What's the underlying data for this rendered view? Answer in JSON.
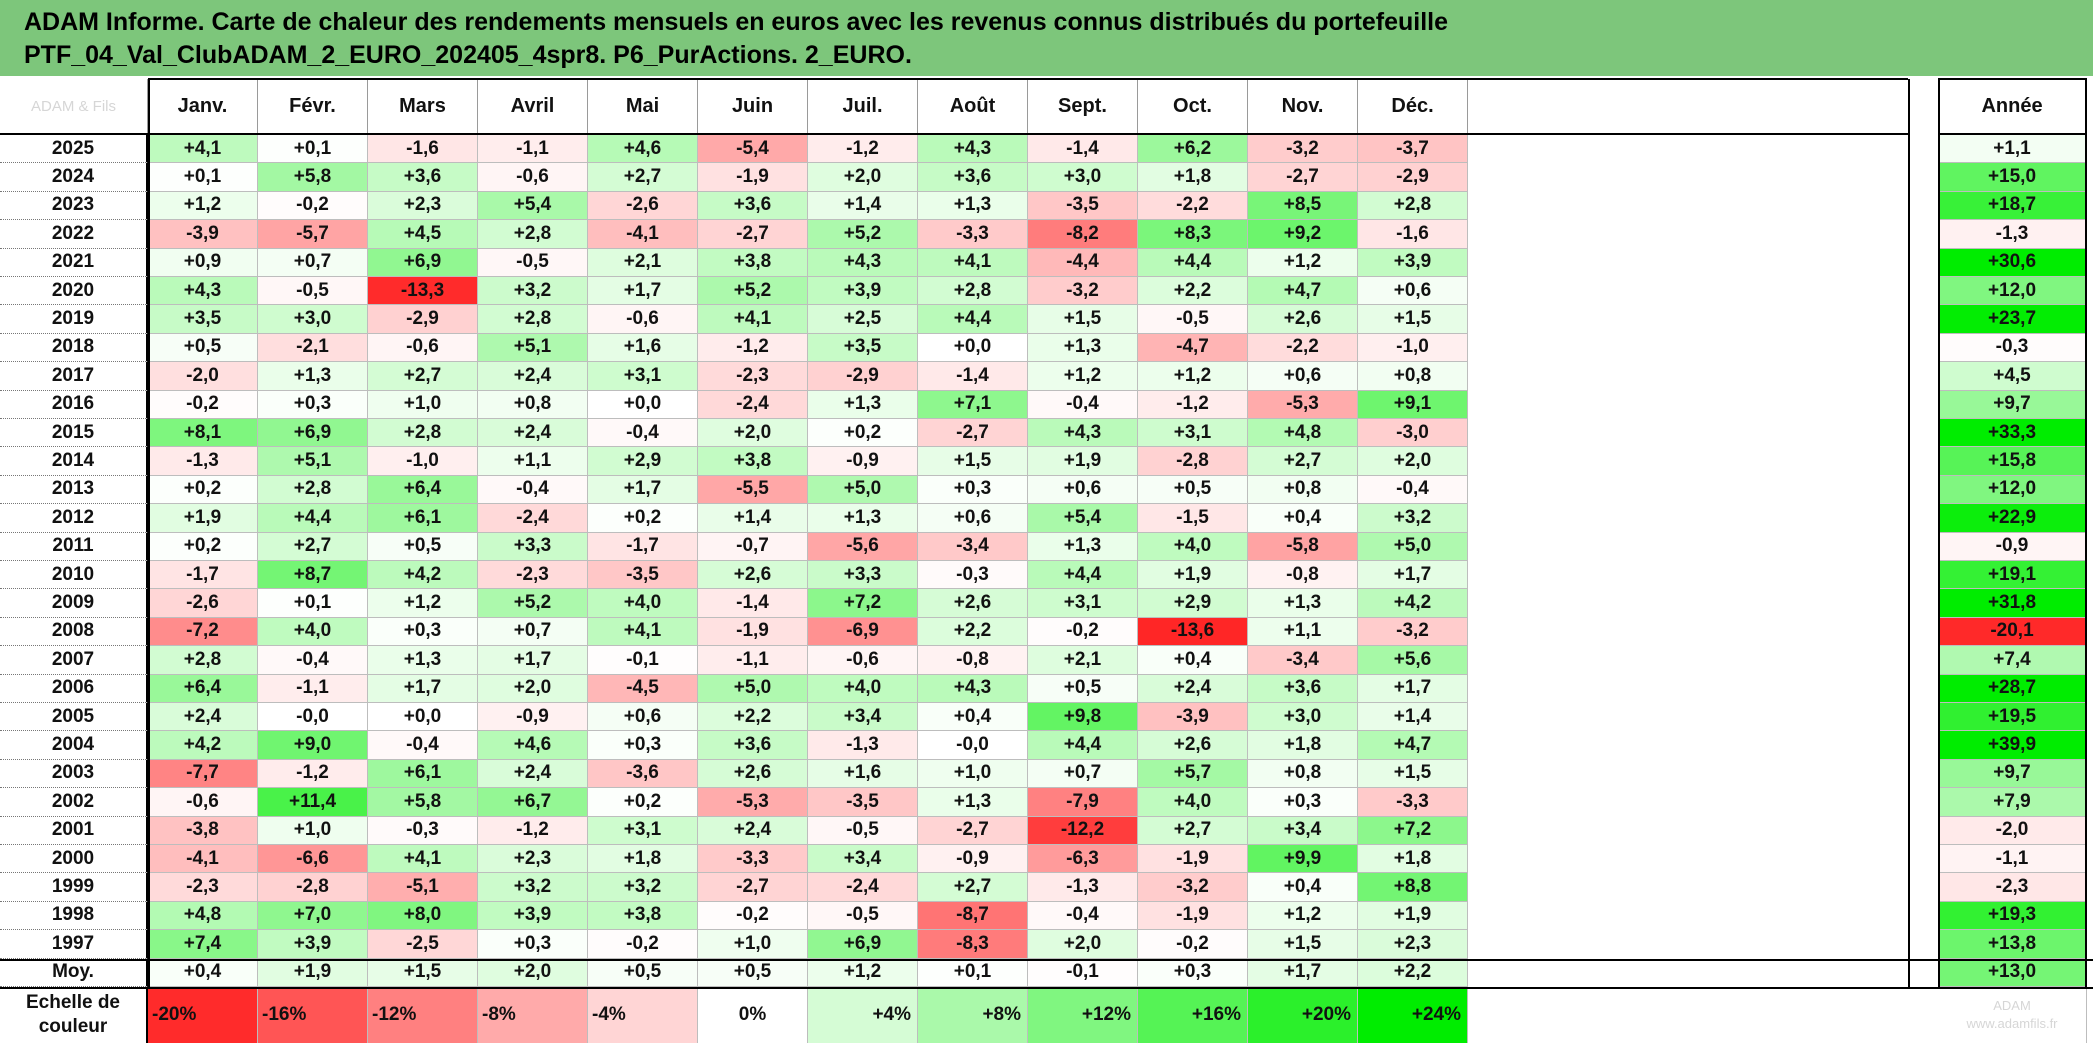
{
  "title": {
    "line1": "ADAM Informe. Carte de chaleur des rendements mensuels en euros avec les revenus connus distribués du portefeuille",
    "line2": "PTF_04_Val_ClubADAM_2_EURO_202405_4spr8. P6_PurActions. 2_EURO."
  },
  "corner_label": "ADAM & Fils",
  "colors": {
    "title_bg": "#7dc67b",
    "negative_max": "#ff0000",
    "positive_max": "#00ee00",
    "neutral": "#ffffff"
  },
  "chart_data": {
    "type": "heatmap",
    "months": [
      "Janv.",
      "Févr.",
      "Mars",
      "Avril",
      "Mai",
      "Juin",
      "Juil.",
      "Août",
      "Sept.",
      "Oct.",
      "Nov.",
      "Déc."
    ],
    "year_label": "Année",
    "avg_label": "Moy.",
    "rows": [
      {
        "year": "2025",
        "m": [
          "+4,1",
          "+0,1",
          "-1,6",
          "-1,1",
          "+4,6",
          "-5,4",
          "-1,2",
          "+4,3",
          "-1,4",
          "+6,2",
          "-3,2",
          "-3,7"
        ],
        "y": "+1,1"
      },
      {
        "year": "2024",
        "m": [
          "+0,1",
          "+5,8",
          "+3,6",
          "-0,6",
          "+2,7",
          "-1,9",
          "+2,0",
          "+3,6",
          "+3,0",
          "+1,8",
          "-2,7",
          "-2,9"
        ],
        "y": "+15,0"
      },
      {
        "year": "2023",
        "m": [
          "+1,2",
          "-0,2",
          "+2,3",
          "+5,4",
          "-2,6",
          "+3,6",
          "+1,4",
          "+1,3",
          "-3,5",
          "-2,2",
          "+8,5",
          "+2,8"
        ],
        "y": "+18,7"
      },
      {
        "year": "2022",
        "m": [
          "-3,9",
          "-5,7",
          "+4,5",
          "+2,8",
          "-4,1",
          "-2,7",
          "+5,2",
          "-3,3",
          "-8,2",
          "+8,3",
          "+9,2",
          "-1,6"
        ],
        "y": "-1,3"
      },
      {
        "year": "2021",
        "m": [
          "+0,9",
          "+0,7",
          "+6,9",
          "-0,5",
          "+2,1",
          "+3,8",
          "+4,3",
          "+4,1",
          "-4,4",
          "+4,4",
          "+1,2",
          "+3,9"
        ],
        "y": "+30,6"
      },
      {
        "year": "2020",
        "m": [
          "+4,3",
          "-0,5",
          "-13,3",
          "+3,2",
          "+1,7",
          "+5,2",
          "+3,9",
          "+2,8",
          "-3,2",
          "+2,2",
          "+4,7",
          "+0,6"
        ],
        "y": "+12,0"
      },
      {
        "year": "2019",
        "m": [
          "+3,5",
          "+3,0",
          "-2,9",
          "+2,8",
          "-0,6",
          "+4,1",
          "+2,5",
          "+4,4",
          "+1,5",
          "-0,5",
          "+2,6",
          "+1,5"
        ],
        "y": "+23,7"
      },
      {
        "year": "2018",
        "m": [
          "+0,5",
          "-2,1",
          "-0,6",
          "+5,1",
          "+1,6",
          "-1,2",
          "+3,5",
          "+0,0",
          "+1,3",
          "-4,7",
          "-2,2",
          "-1,0"
        ],
        "y": "-0,3"
      },
      {
        "year": "2017",
        "m": [
          "-2,0",
          "+1,3",
          "+2,7",
          "+2,4",
          "+3,1",
          "-2,3",
          "-2,9",
          "-1,4",
          "+1,2",
          "+1,2",
          "+0,6",
          "+0,8"
        ],
        "y": "+4,5"
      },
      {
        "year": "2016",
        "m": [
          "-0,2",
          "+0,3",
          "+1,0",
          "+0,8",
          "+0,0",
          "-2,4",
          "+1,3",
          "+7,1",
          "-0,4",
          "-1,2",
          "-5,3",
          "+9,1"
        ],
        "y": "+9,7"
      },
      {
        "year": "2015",
        "m": [
          "+8,1",
          "+6,9",
          "+2,8",
          "+2,4",
          "-0,4",
          "+2,0",
          "+0,2",
          "-2,7",
          "+4,3",
          "+3,1",
          "+4,8",
          "-3,0"
        ],
        "y": "+33,3"
      },
      {
        "year": "2014",
        "m": [
          "-1,3",
          "+5,1",
          "-1,0",
          "+1,1",
          "+2,9",
          "+3,8",
          "-0,9",
          "+1,5",
          "+1,9",
          "-2,8",
          "+2,7",
          "+2,0"
        ],
        "y": "+15,8"
      },
      {
        "year": "2013",
        "m": [
          "+0,2",
          "+2,8",
          "+6,4",
          "-0,4",
          "+1,7",
          "-5,5",
          "+5,0",
          "+0,3",
          "+0,6",
          "+0,5",
          "+0,8",
          "-0,4"
        ],
        "y": "+12,0"
      },
      {
        "year": "2012",
        "m": [
          "+1,9",
          "+4,4",
          "+6,1",
          "-2,4",
          "+0,2",
          "+1,4",
          "+1,3",
          "+0,6",
          "+5,4",
          "-1,5",
          "+0,4",
          "+3,2"
        ],
        "y": "+22,9"
      },
      {
        "year": "2011",
        "m": [
          "+0,2",
          "+2,7",
          "+0,5",
          "+3,3",
          "-1,7",
          "-0,7",
          "-5,6",
          "-3,4",
          "+1,3",
          "+4,0",
          "-5,8",
          "+5,0"
        ],
        "y": "-0,9"
      },
      {
        "year": "2010",
        "m": [
          "-1,7",
          "+8,7",
          "+4,2",
          "-2,3",
          "-3,5",
          "+2,6",
          "+3,3",
          "-0,3",
          "+4,4",
          "+1,9",
          "-0,8",
          "+1,7"
        ],
        "y": "+19,1"
      },
      {
        "year": "2009",
        "m": [
          "-2,6",
          "+0,1",
          "+1,2",
          "+5,2",
          "+4,0",
          "-1,4",
          "+7,2",
          "+2,6",
          "+3,1",
          "+2,9",
          "+1,3",
          "+4,2"
        ],
        "y": "+31,8"
      },
      {
        "year": "2008",
        "m": [
          "-7,2",
          "+4,0",
          "+0,3",
          "+0,7",
          "+4,1",
          "-1,9",
          "-6,9",
          "+2,2",
          "-0,2",
          "-13,6",
          "+1,1",
          "-3,2"
        ],
        "y": "-20,1"
      },
      {
        "year": "2007",
        "m": [
          "+2,8",
          "-0,4",
          "+1,3",
          "+1,7",
          "-0,1",
          "-1,1",
          "-0,6",
          "-0,8",
          "+2,1",
          "+0,4",
          "-3,4",
          "+5,6"
        ],
        "y": "+7,4"
      },
      {
        "year": "2006",
        "m": [
          "+6,4",
          "-1,1",
          "+1,7",
          "+2,0",
          "-4,5",
          "+5,0",
          "+4,0",
          "+4,3",
          "+0,5",
          "+2,4",
          "+3,6",
          "+1,7"
        ],
        "y": "+28,7"
      },
      {
        "year": "2005",
        "m": [
          "+2,4",
          "-0,0",
          "+0,0",
          "-0,9",
          "+0,6",
          "+2,2",
          "+3,4",
          "+0,4",
          "+9,8",
          "-3,9",
          "+3,0",
          "+1,4"
        ],
        "y": "+19,5"
      },
      {
        "year": "2004",
        "m": [
          "+4,2",
          "+9,0",
          "-0,4",
          "+4,6",
          "+0,3",
          "+3,6",
          "-1,3",
          "-0,0",
          "+4,4",
          "+2,6",
          "+1,8",
          "+4,7"
        ],
        "y": "+39,9"
      },
      {
        "year": "2003",
        "m": [
          "-7,7",
          "-1,2",
          "+6,1",
          "+2,4",
          "-3,6",
          "+2,6",
          "+1,6",
          "+1,0",
          "+0,7",
          "+5,7",
          "+0,8",
          "+1,5"
        ],
        "y": "+9,7"
      },
      {
        "year": "2002",
        "m": [
          "-0,6",
          "+11,4",
          "+5,8",
          "+6,7",
          "+0,2",
          "-5,3",
          "-3,5",
          "+1,3",
          "-7,9",
          "+4,0",
          "+0,3",
          "-3,3"
        ],
        "y": "+7,9"
      },
      {
        "year": "2001",
        "m": [
          "-3,8",
          "+1,0",
          "-0,3",
          "-1,2",
          "+3,1",
          "+2,4",
          "-0,5",
          "-2,7",
          "-12,2",
          "+2,7",
          "+3,4",
          "+7,2"
        ],
        "y": "-2,0"
      },
      {
        "year": "2000",
        "m": [
          "-4,1",
          "-6,6",
          "+4,1",
          "+2,3",
          "+1,8",
          "-3,3",
          "+3,4",
          "-0,9",
          "-6,3",
          "-1,9",
          "+9,9",
          "+1,8"
        ],
        "y": "-1,1"
      },
      {
        "year": "1999",
        "m": [
          "-2,3",
          "-2,8",
          "-5,1",
          "+3,2",
          "+3,2",
          "-2,7",
          "-2,4",
          "+2,7",
          "-1,3",
          "-3,2",
          "+0,4",
          "+8,8"
        ],
        "y": "-2,3"
      },
      {
        "year": "1998",
        "m": [
          "+4,8",
          "+7,0",
          "+8,0",
          "+3,9",
          "+3,8",
          "-0,2",
          "-0,5",
          "-8,7",
          "-0,4",
          "-1,9",
          "+1,2",
          "+1,9"
        ],
        "y": "+19,3"
      },
      {
        "year": "1997",
        "m": [
          "+7,4",
          "+3,9",
          "-2,5",
          "+0,3",
          "-0,2",
          "+1,0",
          "+6,9",
          "-8,3",
          "+2,0",
          "-0,2",
          "+1,5",
          "+2,3"
        ],
        "y": "+13,8"
      }
    ],
    "average": {
      "m": [
        "+0,4",
        "+1,9",
        "+1,5",
        "+2,0",
        "+0,5",
        "+0,5",
        "+1,2",
        "+0,1",
        "-0,1",
        "+0,3",
        "+1,7",
        "+2,2"
      ],
      "y": "+13,0"
    },
    "scale": {
      "label_line1": "Echelle de",
      "label_line2": "couleur",
      "steps": [
        {
          "label": "-20%",
          "v": -20
        },
        {
          "label": "-16%",
          "v": -16
        },
        {
          "label": "-12%",
          "v": -12
        },
        {
          "label": "-8%",
          "v": -8
        },
        {
          "label": "-4%",
          "v": -4
        },
        {
          "label": "0%",
          "v": 0
        },
        {
          "label": "+4%",
          "v": 4
        },
        {
          "label": "+8%",
          "v": 8
        },
        {
          "label": "+12%",
          "v": 12
        },
        {
          "label": "+16%",
          "v": 16
        },
        {
          "label": "+20%",
          "v": 20
        },
        {
          "label": "+24%",
          "v": 24
        }
      ],
      "footnote_line1": "ADAM",
      "footnote_line2": "www.adamfils.fr"
    }
  }
}
